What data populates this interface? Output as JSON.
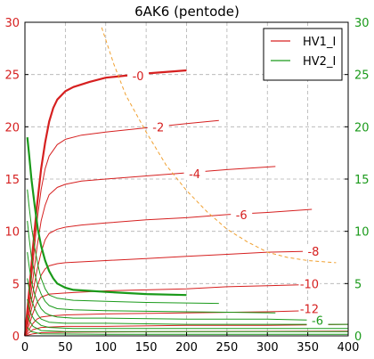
{
  "chart_data": {
    "type": "line",
    "title": "6AK6 (pentode)",
    "xlabel": "",
    "ylabel_left": "",
    "ylabel_right": "",
    "xlim": [
      0,
      400
    ],
    "ylim_left": [
      0,
      30
    ],
    "ylim_right": [
      0,
      30
    ],
    "x_ticks": [
      0,
      50,
      100,
      150,
      200,
      250,
      300,
      350,
      400
    ],
    "y_ticks_left": [
      0,
      5,
      10,
      15,
      20,
      25,
      30
    ],
    "y_ticks_right": [
      0,
      5,
      10,
      15,
      20,
      25,
      30
    ],
    "grid": true,
    "legend_position": "top-right",
    "colors": {
      "HV1_I": "#d62020",
      "HV2_I": "#1a9a1a",
      "load_line": "#f0a030",
      "right_axis": "#1a9a1a"
    },
    "series": [
      {
        "name": "HV1_I",
        "axis": "left",
        "curves": [
          {
            "label": "-0",
            "label_x": 140,
            "label_y": 24.9,
            "bold": true,
            "points": [
              [
                0,
                0
              ],
              [
                5,
                4
              ],
              [
                10,
                8.5
              ],
              [
                15,
                12.5
              ],
              [
                20,
                16
              ],
              [
                25,
                18.5
              ],
              [
                30,
                20.5
              ],
              [
                35,
                21.8
              ],
              [
                40,
                22.6
              ],
              [
                50,
                23.4
              ],
              [
                60,
                23.8
              ],
              [
                80,
                24.3
              ],
              [
                100,
                24.7
              ],
              [
                150,
                25.1
              ],
              [
                200,
                25.4
              ]
            ]
          },
          {
            "label": "-2",
            "label_x": 165,
            "label_y": 20.0,
            "points": [
              [
                0,
                0
              ],
              [
                5,
                3.2
              ],
              [
                10,
                7
              ],
              [
                15,
                11
              ],
              [
                20,
                14
              ],
              [
                25,
                16
              ],
              [
                30,
                17.2
              ],
              [
                40,
                18.3
              ],
              [
                50,
                18.8
              ],
              [
                70,
                19.2
              ],
              [
                100,
                19.5
              ],
              [
                150,
                19.9
              ],
              [
                200,
                20.3
              ],
              [
                240,
                20.6
              ]
            ]
          },
          {
            "label": "-4",
            "label_x": 210,
            "label_y": 15.5,
            "points": [
              [
                0,
                0
              ],
              [
                5,
                2.6
              ],
              [
                10,
                5.5
              ],
              [
                15,
                8.5
              ],
              [
                20,
                11
              ],
              [
                25,
                12.5
              ],
              [
                30,
                13.5
              ],
              [
                40,
                14.2
              ],
              [
                50,
                14.5
              ],
              [
                70,
                14.8
              ],
              [
                100,
                15
              ],
              [
                150,
                15.3
              ],
              [
                200,
                15.6
              ],
              [
                250,
                15.9
              ],
              [
                310,
                16.2
              ]
            ]
          },
          {
            "label": "-6",
            "label_x": 268,
            "label_y": 11.6,
            "points": [
              [
                0,
                0
              ],
              [
                5,
                2
              ],
              [
                10,
                4.2
              ],
              [
                15,
                6.3
              ],
              [
                20,
                8
              ],
              [
                25,
                9.2
              ],
              [
                30,
                9.8
              ],
              [
                40,
                10.2
              ],
              [
                50,
                10.4
              ],
              [
                70,
                10.6
              ],
              [
                100,
                10.8
              ],
              [
                150,
                11.1
              ],
              [
                200,
                11.3
              ],
              [
                250,
                11.6
              ],
              [
                300,
                11.8
              ],
              [
                355,
                12.1
              ]
            ]
          },
          {
            "label": "-8",
            "label_x": 357,
            "label_y": 8.1,
            "points": [
              [
                0,
                0
              ],
              [
                5,
                1.5
              ],
              [
                10,
                3.2
              ],
              [
                15,
                4.7
              ],
              [
                20,
                5.8
              ],
              [
                25,
                6.4
              ],
              [
                30,
                6.7
              ],
              [
                40,
                6.9
              ],
              [
                50,
                7
              ],
              [
                100,
                7.2
              ],
              [
                150,
                7.4
              ],
              [
                200,
                7.6
              ],
              [
                250,
                7.8
              ],
              [
                300,
                8
              ],
              [
                355,
                8.1
              ]
            ]
          },
          {
            "label": "-10",
            "label_x": 352,
            "label_y": 5.0,
            "points": [
              [
                0,
                0
              ],
              [
                5,
                1
              ],
              [
                10,
                2.2
              ],
              [
                15,
                3.2
              ],
              [
                20,
                3.7
              ],
              [
                30,
                4
              ],
              [
                50,
                4.1
              ],
              [
                100,
                4.3
              ],
              [
                150,
                4.4
              ],
              [
                200,
                4.5
              ],
              [
                250,
                4.7
              ],
              [
                300,
                4.8
              ],
              [
                350,
                4.9
              ]
            ]
          },
          {
            "label": "-12",
            "label_x": 352,
            "label_y": 2.6,
            "points": [
              [
                0,
                0
              ],
              [
                5,
                0.6
              ],
              [
                10,
                1.2
              ],
              [
                15,
                1.6
              ],
              [
                20,
                1.8
              ],
              [
                30,
                1.9
              ],
              [
                50,
                2
              ],
              [
                100,
                2.1
              ],
              [
                200,
                2.2
              ],
              [
                300,
                2.3
              ],
              [
                350,
                2.4
              ]
            ]
          },
          {
            "label": "",
            "label_x": 0,
            "label_y": 0,
            "points": [
              [
                0,
                0
              ],
              [
                5,
                0.3
              ],
              [
                10,
                0.6
              ],
              [
                20,
                0.8
              ],
              [
                50,
                0.9
              ],
              [
                100,
                0.9
              ],
              [
                200,
                1
              ],
              [
                300,
                1
              ],
              [
                400,
                1.1
              ]
            ]
          },
          {
            "label": "",
            "label_x": 0,
            "label_y": 0,
            "points": [
              [
                0,
                0
              ],
              [
                10,
                0.2
              ],
              [
                20,
                0.3
              ],
              [
                50,
                0.35
              ],
              [
                200,
                0.4
              ],
              [
                400,
                0.45
              ]
            ]
          }
        ]
      },
      {
        "name": "HV2_I",
        "axis": "right",
        "curves": [
          {
            "label": "",
            "label_x": 0,
            "label_y": 0,
            "bold": true,
            "points": [
              [
                3,
                19
              ],
              [
                5,
                17.5
              ],
              [
                8,
                15
              ],
              [
                12,
                12.5
              ],
              [
                16,
                10.2
              ],
              [
                20,
                8.6
              ],
              [
                25,
                7.2
              ],
              [
                30,
                6.2
              ],
              [
                35,
                5.5
              ],
              [
                40,
                5
              ],
              [
                50,
                4.6
              ],
              [
                60,
                4.4
              ],
              [
                80,
                4.3
              ],
              [
                100,
                4.2
              ],
              [
                150,
                4
              ],
              [
                200,
                3.9
              ]
            ]
          },
          {
            "label": "",
            "label_x": 0,
            "label_y": 0,
            "points": [
              [
                3,
                14
              ],
              [
                5,
                12.5
              ],
              [
                8,
                10.5
              ],
              [
                12,
                8.5
              ],
              [
                16,
                6.8
              ],
              [
                20,
                5.5
              ],
              [
                25,
                4.5
              ],
              [
                30,
                3.9
              ],
              [
                40,
                3.6
              ],
              [
                60,
                3.4
              ],
              [
                100,
                3.3
              ],
              [
                150,
                3.2
              ],
              [
                240,
                3.1
              ]
            ]
          },
          {
            "label": "",
            "label_x": 0,
            "label_y": 0,
            "points": [
              [
                3,
                11
              ],
              [
                5,
                9.5
              ],
              [
                8,
                7.5
              ],
              [
                12,
                6
              ],
              [
                16,
                4.8
              ],
              [
                20,
                4
              ],
              [
                25,
                3.3
              ],
              [
                30,
                2.9
              ],
              [
                40,
                2.6
              ],
              [
                60,
                2.5
              ],
              [
                100,
                2.4
              ],
              [
                200,
                2.3
              ],
              [
                310,
                2.2
              ]
            ]
          },
          {
            "label": "-6",
            "label_x": 362,
            "label_y": 1.5,
            "points": [
              [
                3,
                8
              ],
              [
                5,
                6.8
              ],
              [
                8,
                5.2
              ],
              [
                12,
                4
              ],
              [
                16,
                3.2
              ],
              [
                20,
                2.6
              ],
              [
                25,
                2.2
              ],
              [
                30,
                2
              ],
              [
                40,
                1.8
              ],
              [
                60,
                1.7
              ],
              [
                100,
                1.7
              ],
              [
                200,
                1.6
              ],
              [
                300,
                1.6
              ],
              [
                355,
                1.5
              ]
            ]
          },
          {
            "label": "",
            "label_x": 0,
            "label_y": 0,
            "points": [
              [
                3,
                5.5
              ],
              [
                5,
                4.6
              ],
              [
                8,
                3.5
              ],
              [
                12,
                2.6
              ],
              [
                16,
                2
              ],
              [
                20,
                1.6
              ],
              [
                30,
                1.3
              ],
              [
                50,
                1.2
              ],
              [
                100,
                1.2
              ],
              [
                200,
                1.1
              ],
              [
                300,
                1.1
              ],
              [
                400,
                1.1
              ]
            ]
          },
          {
            "label": "",
            "label_x": 0,
            "label_y": 0,
            "points": [
              [
                3,
                3.5
              ],
              [
                5,
                2.8
              ],
              [
                8,
                2
              ],
              [
                12,
                1.5
              ],
              [
                20,
                1
              ],
              [
                30,
                0.8
              ],
              [
                60,
                0.7
              ],
              [
                150,
                0.7
              ],
              [
                300,
                0.7
              ],
              [
                400,
                0.7
              ]
            ]
          },
          {
            "label": "",
            "label_x": 0,
            "label_y": 0,
            "points": [
              [
                3,
                2
              ],
              [
                6,
                1.4
              ],
              [
                10,
                0.9
              ],
              [
                20,
                0.5
              ],
              [
                50,
                0.4
              ],
              [
                200,
                0.4
              ],
              [
                400,
                0.4
              ]
            ]
          },
          {
            "label": "",
            "label_x": 0,
            "label_y": 0,
            "points": [
              [
                3,
                0.8
              ],
              [
                8,
                0.4
              ],
              [
                20,
                0.2
              ],
              [
                100,
                0.15
              ],
              [
                400,
                0.15
              ]
            ]
          }
        ]
      },
      {
        "name": "",
        "axis": "left",
        "style": "dashed",
        "curves": [
          {
            "label": "",
            "label_x": 0,
            "label_y": 0,
            "points": [
              [
                95,
                29.5
              ],
              [
                110,
                26
              ],
              [
                125,
                23
              ],
              [
                150,
                19.5
              ],
              [
                175,
                16.3
              ],
              [
                200,
                13.9
              ],
              [
                225,
                11.9
              ],
              [
                250,
                10.2
              ],
              [
                275,
                9
              ],
              [
                300,
                8
              ],
              [
                325,
                7.5
              ],
              [
                350,
                7.2
              ],
              [
                385,
                7
              ]
            ]
          }
        ]
      }
    ]
  }
}
